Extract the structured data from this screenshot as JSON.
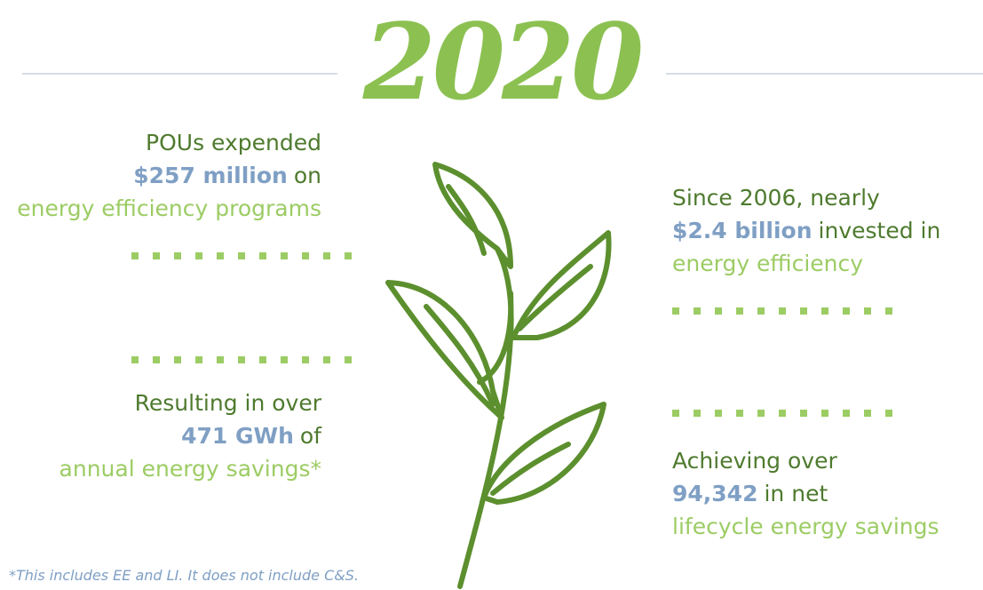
{
  "title": "2020",
  "stats": [
    {
      "line1": "POUs expended",
      "highlight": "$257 million",
      "after": "on",
      "line3": "energy efficiency programs"
    },
    {
      "line1": "Since 2006, nearly",
      "highlight": "$2.4 billion",
      "after": "invested in",
      "line3": "energy efficiency"
    },
    {
      "line1": "Resulting in over",
      "highlight": "471 GWh",
      "after": "of",
      "line3": "annual energy savings*"
    },
    {
      "line1": "Achieving over",
      "highlight": "94,342",
      "after": "in net",
      "line3": "lifecycle energy savings"
    }
  ],
  "footnote": "*This includes EE and LI. It does not include C&S."
}
